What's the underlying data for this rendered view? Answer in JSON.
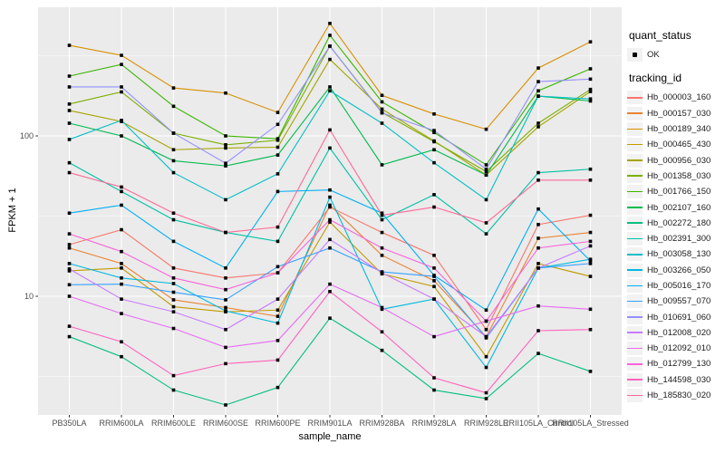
{
  "figure": {
    "panel_bg": "#EBEBEB",
    "grid_color": "#FFFFFF",
    "tick_label_color": "#4D4D4D",
    "tick_mark_color": "#333333",
    "point_color": "#000000"
  },
  "axes": {
    "x_title": "sample_name",
    "y_title": "FPKM + 1",
    "y_ticks": [
      {
        "label": "100",
        "value": 100
      },
      {
        "label": "10",
        "value": 10
      }
    ]
  },
  "legend": {
    "quant_title": "quant_status",
    "quant_items": [
      {
        "label": "OK"
      }
    ],
    "tracking_title": "tracking_id"
  },
  "chart_data": {
    "type": "line",
    "title": "",
    "xlabel": "sample_name",
    "ylabel": "FPKM + 1",
    "yscale": "log10",
    "ylim": [
      1.8,
      634
    ],
    "grid": true,
    "legend_position": "right",
    "marker": "black-square-all-points",
    "x": [
      "PB350LA",
      "RRIM600LA",
      "RRIM600LE",
      "RRIM600SE",
      "RRIM600PE",
      "RRIM901LA",
      "RRIM928BA",
      "RRIM928LA",
      "RRIM928LE",
      "RRII105LA_Control",
      "RRII105LA_Stressed"
    ],
    "series": [
      {
        "name": "Hb_000003_160",
        "color": "#F8766D",
        "values": [
          21,
          26,
          15,
          13,
          14,
          36,
          25,
          18,
          6.2,
          28,
          32
        ]
      },
      {
        "name": "Hb_000157_030",
        "color": "#EA8331",
        "values": [
          20,
          16,
          9.5,
          8.5,
          7.5,
          37,
          18,
          12.5,
          5.6,
          23,
          25
        ]
      },
      {
        "name": "Hb_000189_340",
        "color": "#D89000",
        "values": [
          367,
          318,
          199,
          185,
          140,
          503,
          179,
          137,
          110,
          265,
          386
        ]
      },
      {
        "name": "Hb_000465_430",
        "color": "#C09B00",
        "values": [
          14.4,
          15,
          8.6,
          8,
          8.2,
          29,
          13.8,
          11.5,
          4.2,
          16,
          13.3
        ]
      },
      {
        "name": "Hb_000956_030",
        "color": "#A3A500",
        "values": [
          144,
          123,
          82,
          84,
          85,
          300,
          147,
          93,
          57,
          114,
          189
        ]
      },
      {
        "name": "Hb_001358_030",
        "color": "#7CAE00",
        "values": [
          158,
          188,
          104,
          88,
          94,
          363,
          140,
          92,
          60,
          120,
          195
        ]
      },
      {
        "name": "Hb_001766_150",
        "color": "#39B600",
        "values": [
          236,
          279,
          153,
          100,
          96,
          424,
          163,
          105,
          66,
          191,
          262
        ]
      },
      {
        "name": "Hb_002107_160",
        "color": "#00BB4E",
        "values": [
          120,
          100,
          70,
          65,
          76,
          202,
          66,
          82,
          57,
          177,
          165
        ]
      },
      {
        "name": "Hb_002272_180",
        "color": "#00BF7D",
        "values": [
          5.6,
          4.2,
          2.6,
          2.1,
          2.7,
          7.3,
          4.6,
          2.6,
          2.3,
          4.4,
          3.4
        ]
      },
      {
        "name": "Hb_002391_300",
        "color": "#00C1A3",
        "values": [
          68,
          45,
          30,
          25,
          22,
          84,
          30,
          43,
          24.5,
          59,
          62
        ]
      },
      {
        "name": "Hb_003058_130",
        "color": "#00BFC4",
        "values": [
          95,
          125,
          59,
          40,
          58,
          191,
          120,
          68,
          40,
          177,
          170
        ]
      },
      {
        "name": "Hb_003266_050",
        "color": "#00BAE0",
        "values": [
          16,
          13,
          12,
          8.1,
          6.8,
          41.5,
          8.3,
          9.6,
          3.6,
          15,
          17
        ]
      },
      {
        "name": "Hb_005016_170",
        "color": "#00B0F6",
        "values": [
          33,
          37,
          22,
          15,
          45,
          46,
          33,
          13.5,
          8.2,
          35,
          16.6
        ]
      },
      {
        "name": "Hb_009557_070",
        "color": "#35A2FF",
        "values": [
          11.8,
          11.9,
          10.6,
          9.5,
          15.3,
          20,
          14.2,
          13.3,
          5.5,
          15,
          16
        ]
      },
      {
        "name": "Hb_010691_060",
        "color": "#9590FF",
        "values": [
          202,
          202,
          104,
          67.5,
          118,
          363,
          139,
          108,
          62,
          218,
          226
        ]
      },
      {
        "name": "Hb_012008_020",
        "color": "#C77CFF",
        "values": [
          14.8,
          9.6,
          8,
          6.2,
          9.6,
          22.6,
          14,
          9.6,
          5.6,
          15,
          20.6
        ]
      },
      {
        "name": "Hb_012092_010",
        "color": "#E76BF3",
        "values": [
          10,
          7.8,
          6.3,
          4.8,
          5.3,
          11.9,
          8.5,
          5.6,
          7,
          8.7,
          8.3
        ]
      },
      {
        "name": "Hb_012799_130",
        "color": "#FA62DB",
        "values": [
          24.5,
          19,
          13,
          11,
          14,
          30,
          20,
          15,
          7,
          20,
          22
        ]
      },
      {
        "name": "Hb_144598_030",
        "color": "#FF62BC",
        "values": [
          6.5,
          5.2,
          3.2,
          3.8,
          4,
          10.7,
          6,
          3.1,
          2.5,
          6.1,
          6.2
        ]
      },
      {
        "name": "Hb_185830_020",
        "color": "#FF6A98",
        "values": [
          59,
          48,
          33,
          25,
          27,
          109,
          32,
          36,
          28.7,
          53,
          53
        ]
      }
    ]
  }
}
